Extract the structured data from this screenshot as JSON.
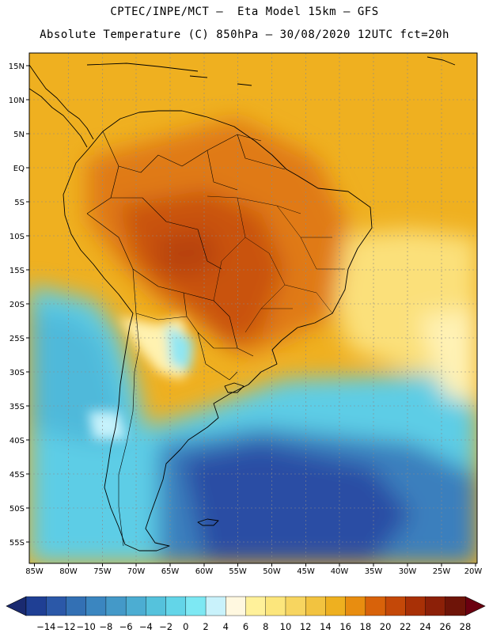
{
  "header": {
    "line1": "CPTEC/INPE/MCT –  Eta Model 15km – GFS",
    "line2": "Absolute Temperature (C) 850hPa – 30/08/2020 12UTC fct=20h"
  },
  "map": {
    "lon_labels": [
      "85W",
      "80W",
      "75W",
      "70W",
      "65W",
      "60W",
      "55W",
      "50W",
      "45W",
      "40W",
      "35W",
      "30W",
      "25W",
      "20W"
    ],
    "lat_labels": [
      "15N",
      "10N",
      "5N",
      "EQ",
      "5S",
      "10S",
      "15S",
      "20S",
      "25S",
      "30S",
      "35S",
      "40S",
      "45S",
      "50S",
      "55S"
    ],
    "colors": {
      "frame": "#000000",
      "coast": "#000000",
      "grid": "#8a8a8a"
    }
  },
  "colorbar": {
    "labels": [
      "-14",
      "-12",
      "-10",
      "-8",
      "-6",
      "-4",
      "-2",
      "0",
      "2",
      "4",
      "6",
      "8",
      "10",
      "12",
      "14",
      "16",
      "18",
      "20",
      "22",
      "24",
      "26",
      "28"
    ],
    "colors": [
      "#1f3f94",
      "#2b58a8",
      "#3370b4",
      "#3b86c0",
      "#4499c8",
      "#4cadd2",
      "#55c2dc",
      "#63d5e8",
      "#7de8f3",
      "#c9f2fb",
      "#fff8e0",
      "#fff19a",
      "#fce67c",
      "#f7d560",
      "#f2c340",
      "#eeb020",
      "#e88d10",
      "#d8620a",
      "#c44808",
      "#a83006",
      "#8c2008",
      "#6e1408"
    ],
    "low_arrow_color": "#1a2a70",
    "high_arrow_color": "#6b0010"
  }
}
